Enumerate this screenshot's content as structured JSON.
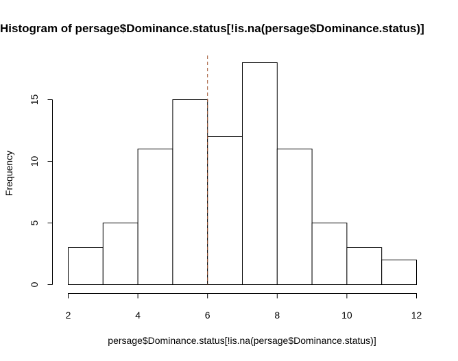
{
  "chart_data": {
    "type": "bar",
    "title": "Histogram of persage$Dominance.status[!is.na(persage$Dominance.status)]",
    "xlabel": "persage$Dominance.status[!is.na(persage$Dominance.status)]",
    "ylabel": "Frequency",
    "bins": [
      {
        "x0": 2,
        "x1": 3,
        "count": 3
      },
      {
        "x0": 3,
        "x1": 4,
        "count": 5
      },
      {
        "x0": 4,
        "x1": 5,
        "count": 11
      },
      {
        "x0": 5,
        "x1": 6,
        "count": 15
      },
      {
        "x0": 6,
        "x1": 7,
        "count": 12
      },
      {
        "x0": 7,
        "x1": 8,
        "count": 18
      },
      {
        "x0": 8,
        "x1": 9,
        "count": 11
      },
      {
        "x0": 9,
        "x1": 10,
        "count": 5
      },
      {
        "x0": 10,
        "x1": 11,
        "count": 3
      },
      {
        "x0": 11,
        "x1": 12,
        "count": 2
      }
    ],
    "xlim": [
      2,
      12
    ],
    "ylim": [
      0,
      18
    ],
    "x_ticks": [
      2,
      4,
      6,
      8,
      10,
      12
    ],
    "y_ticks": [
      0,
      5,
      10,
      15
    ],
    "reference_line": {
      "x": 6,
      "style": "dashed",
      "color": "#a0522d"
    },
    "grid": false
  }
}
